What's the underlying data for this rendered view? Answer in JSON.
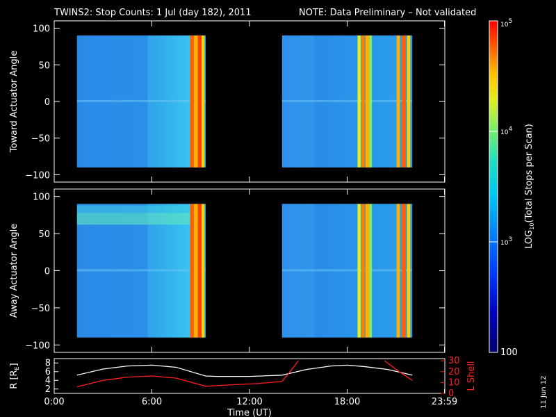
{
  "header": {
    "title": "TWINS2: Stop Counts:  1 Jul (day 182), 2011",
    "note": "NOTE: Data Preliminary – Not validated",
    "note_color": "#ff2020"
  },
  "footer": {
    "date_stamp": "11 Jun 12"
  },
  "chart_data": [
    {
      "type": "heatmap",
      "panel": "toward",
      "ylabel": "Toward Actuator Angle",
      "ylim": [
        -110,
        110
      ],
      "yticks": [
        "100",
        "50",
        "0",
        "−50",
        "−100"
      ],
      "ytick_values": [
        100,
        50,
        0,
        -50,
        -100
      ],
      "xlim": [
        0,
        24
      ],
      "data_blocks": [
        {
          "x_start": 1.4,
          "x_end": 9.3,
          "y_range": [
            -90,
            90
          ]
        },
        {
          "x_start": 14.0,
          "x_end": 22.0,
          "y_range": [
            -90,
            90
          ]
        }
      ]
    },
    {
      "type": "heatmap",
      "panel": "away",
      "ylabel": "Away Actuator Angle",
      "ylim": [
        -110,
        110
      ],
      "yticks": [
        "100",
        "50",
        "0",
        "−50",
        "−100"
      ],
      "ytick_values": [
        100,
        50,
        0,
        -50,
        -100
      ],
      "xlim": [
        0,
        24
      ],
      "data_blocks": [
        {
          "x_start": 1.4,
          "x_end": 9.3,
          "y_range": [
            -90,
            90
          ]
        },
        {
          "x_start": 14.0,
          "x_end": 22.0,
          "y_range": [
            -90,
            90
          ]
        }
      ]
    },
    {
      "type": "line",
      "panel": "orbit",
      "xlabel": "Time (UT)",
      "xticks": [
        "0:00",
        "6:00",
        "12:00",
        "18:00",
        "23:59"
      ],
      "xtick_values": [
        0,
        6,
        12,
        18,
        23.98
      ],
      "xlim": [
        0,
        24
      ],
      "left_axis": {
        "label": "R [R",
        "label_sub": "E",
        "label_end": "]",
        "ticks": [
          "8",
          "6",
          "4",
          "2"
        ],
        "tick_values": [
          8,
          6,
          4,
          2
        ],
        "ylim": [
          1,
          9
        ]
      },
      "right_axis": {
        "label": "L Shell",
        "ticks": [
          "30",
          "20",
          "10",
          "0"
        ],
        "tick_values": [
          30,
          20,
          10,
          0
        ],
        "ylim": [
          0,
          32
        ],
        "color": "#ff2020"
      },
      "series": [
        {
          "axis": "left",
          "color": "#ffffff",
          "x": [
            1.4,
            3,
            4.5,
            6,
            7.5,
            9.3,
            10,
            12,
            14,
            15.5,
            17,
            18,
            19,
            20.5,
            22
          ],
          "y": [
            5.2,
            6.6,
            7.3,
            7.5,
            7.0,
            5.0,
            4.9,
            4.9,
            5.2,
            6.5,
            7.3,
            7.5,
            7.2,
            6.5,
            5.2
          ]
        },
        {
          "axis": "right",
          "color": "#ff2020",
          "x": [
            1.4,
            3,
            4.5,
            6,
            7.5,
            9.3,
            11,
            12.5,
            14,
            14.5,
            15.0
          ],
          "y": [
            6,
            12,
            15,
            16,
            14,
            6.5,
            8,
            9,
            11,
            20,
            30
          ]
        },
        {
          "axis": "right",
          "color": "#ff2020",
          "x": [
            20.3,
            21.2,
            22.0
          ],
          "y": [
            30,
            20,
            12
          ]
        }
      ]
    }
  ],
  "colorbar": {
    "label_prefix": "LOG",
    "label_sub": "10",
    "label_rest": "(Total Stops per Scan)",
    "ticks": [
      {
        "base": "10",
        "exp": "5",
        "value": 100000
      },
      {
        "base": "10",
        "exp": "4",
        "value": 10000
      },
      {
        "base": "10",
        "exp": "3",
        "value": 1000
      },
      {
        "base": "100",
        "exp": "",
        "value": 100
      }
    ],
    "range": [
      100,
      100000
    ]
  }
}
